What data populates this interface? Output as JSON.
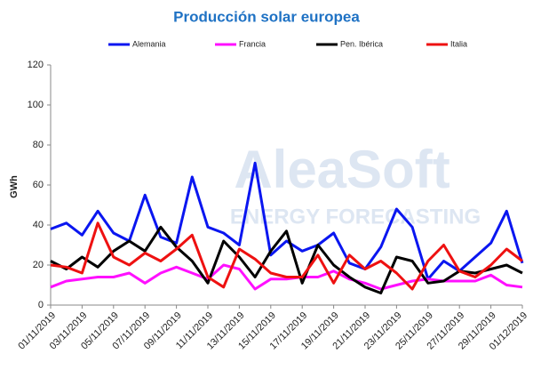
{
  "chart_data": {
    "type": "line",
    "title": "Producción solar europea",
    "y_label": "GWh",
    "watermark": [
      "AleaSoft",
      "ENERGY FORECASTING"
    ],
    "categories": [
      "01/11/2019",
      null,
      "03/11/2019",
      null,
      "05/11/2019",
      null,
      "07/11/2019",
      null,
      "09/11/2019",
      null,
      "11/11/2019",
      null,
      "13/11/2019",
      null,
      "15/11/2019",
      null,
      "17/11/2019",
      null,
      "19/11/2019",
      null,
      "21/11/2019",
      null,
      "23/11/2019",
      null,
      "25/11/2019",
      null,
      "27/11/2019",
      null,
      "29/11/2019",
      null,
      "01/12/2019"
    ],
    "ylim": [
      0,
      120
    ],
    "yticks": [
      0,
      20,
      40,
      60,
      80,
      100,
      120
    ],
    "grid": false,
    "legend": "top",
    "series": [
      {
        "name": "Alemania",
        "color": "#0a16f0",
        "values": [
          38,
          41,
          35,
          47,
          36,
          32,
          55,
          34,
          31,
          64,
          39,
          36,
          30,
          71,
          25,
          32,
          27,
          30,
          36,
          21,
          18,
          29,
          48,
          39,
          13,
          22,
          17,
          24,
          31,
          47,
          21
        ]
      },
      {
        "name": "Francia",
        "color": "#ff10ff",
        "values": [
          9,
          12,
          13,
          14,
          14,
          16,
          11,
          16,
          19,
          16,
          13,
          20,
          18,
          8,
          13,
          13,
          14,
          14,
          17,
          13,
          11,
          8,
          10,
          12,
          13,
          12,
          12,
          12,
          15,
          10,
          9
        ]
      },
      {
        "name": "Pen. Ibérica",
        "color": "#000000",
        "values": [
          22,
          18,
          24,
          19,
          27,
          32,
          27,
          39,
          29,
          22,
          11,
          32,
          24,
          14,
          27,
          37,
          11,
          30,
          20,
          14,
          9,
          6,
          24,
          22,
          11,
          12,
          17,
          16,
          18,
          20,
          16
        ]
      },
      {
        "name": "Italia",
        "color": "#ee1111",
        "values": [
          20,
          19,
          16,
          41,
          24,
          20,
          26,
          22,
          28,
          35,
          14,
          9,
          28,
          23,
          16,
          14,
          14,
          25,
          11,
          25,
          18,
          22,
          16,
          8,
          22,
          30,
          17,
          14,
          20,
          28,
          22
        ]
      }
    ]
  }
}
